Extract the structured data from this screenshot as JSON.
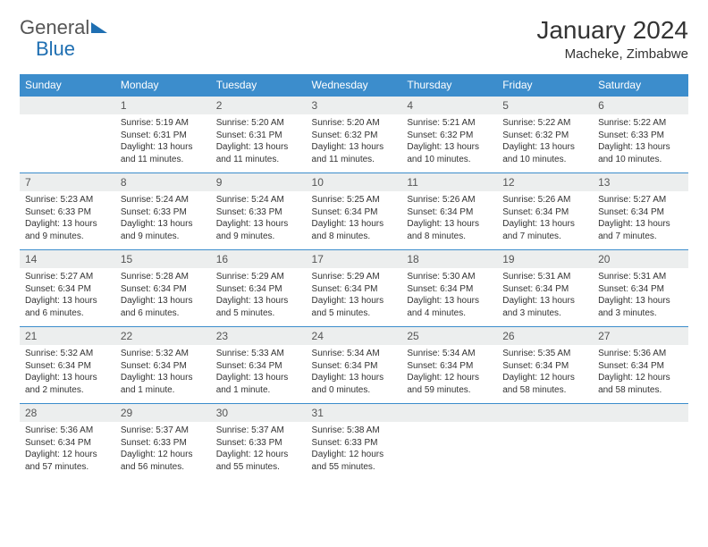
{
  "logo": {
    "part1": "General",
    "part2": "Blue"
  },
  "title": {
    "month": "January 2024",
    "location": "Macheke, Zimbabwe"
  },
  "colors": {
    "header_bg": "#3c8dcc",
    "header_text": "#ffffff",
    "daynum_bg": "#eceeee",
    "border": "#3c8dcc",
    "logo_accent": "#1f6fb2",
    "body_text": "#333333"
  },
  "weekdays": [
    "Sunday",
    "Monday",
    "Tuesday",
    "Wednesday",
    "Thursday",
    "Friday",
    "Saturday"
  ],
  "weeks": [
    [
      {
        "n": "",
        "sr": "",
        "ss": "",
        "dl": ""
      },
      {
        "n": "1",
        "sr": "Sunrise: 5:19 AM",
        "ss": "Sunset: 6:31 PM",
        "dl": "Daylight: 13 hours and 11 minutes."
      },
      {
        "n": "2",
        "sr": "Sunrise: 5:20 AM",
        "ss": "Sunset: 6:31 PM",
        "dl": "Daylight: 13 hours and 11 minutes."
      },
      {
        "n": "3",
        "sr": "Sunrise: 5:20 AM",
        "ss": "Sunset: 6:32 PM",
        "dl": "Daylight: 13 hours and 11 minutes."
      },
      {
        "n": "4",
        "sr": "Sunrise: 5:21 AM",
        "ss": "Sunset: 6:32 PM",
        "dl": "Daylight: 13 hours and 10 minutes."
      },
      {
        "n": "5",
        "sr": "Sunrise: 5:22 AM",
        "ss": "Sunset: 6:32 PM",
        "dl": "Daylight: 13 hours and 10 minutes."
      },
      {
        "n": "6",
        "sr": "Sunrise: 5:22 AM",
        "ss": "Sunset: 6:33 PM",
        "dl": "Daylight: 13 hours and 10 minutes."
      }
    ],
    [
      {
        "n": "7",
        "sr": "Sunrise: 5:23 AM",
        "ss": "Sunset: 6:33 PM",
        "dl": "Daylight: 13 hours and 9 minutes."
      },
      {
        "n": "8",
        "sr": "Sunrise: 5:24 AM",
        "ss": "Sunset: 6:33 PM",
        "dl": "Daylight: 13 hours and 9 minutes."
      },
      {
        "n": "9",
        "sr": "Sunrise: 5:24 AM",
        "ss": "Sunset: 6:33 PM",
        "dl": "Daylight: 13 hours and 9 minutes."
      },
      {
        "n": "10",
        "sr": "Sunrise: 5:25 AM",
        "ss": "Sunset: 6:34 PM",
        "dl": "Daylight: 13 hours and 8 minutes."
      },
      {
        "n": "11",
        "sr": "Sunrise: 5:26 AM",
        "ss": "Sunset: 6:34 PM",
        "dl": "Daylight: 13 hours and 8 minutes."
      },
      {
        "n": "12",
        "sr": "Sunrise: 5:26 AM",
        "ss": "Sunset: 6:34 PM",
        "dl": "Daylight: 13 hours and 7 minutes."
      },
      {
        "n": "13",
        "sr": "Sunrise: 5:27 AM",
        "ss": "Sunset: 6:34 PM",
        "dl": "Daylight: 13 hours and 7 minutes."
      }
    ],
    [
      {
        "n": "14",
        "sr": "Sunrise: 5:27 AM",
        "ss": "Sunset: 6:34 PM",
        "dl": "Daylight: 13 hours and 6 minutes."
      },
      {
        "n": "15",
        "sr": "Sunrise: 5:28 AM",
        "ss": "Sunset: 6:34 PM",
        "dl": "Daylight: 13 hours and 6 minutes."
      },
      {
        "n": "16",
        "sr": "Sunrise: 5:29 AM",
        "ss": "Sunset: 6:34 PM",
        "dl": "Daylight: 13 hours and 5 minutes."
      },
      {
        "n": "17",
        "sr": "Sunrise: 5:29 AM",
        "ss": "Sunset: 6:34 PM",
        "dl": "Daylight: 13 hours and 5 minutes."
      },
      {
        "n": "18",
        "sr": "Sunrise: 5:30 AM",
        "ss": "Sunset: 6:34 PM",
        "dl": "Daylight: 13 hours and 4 minutes."
      },
      {
        "n": "19",
        "sr": "Sunrise: 5:31 AM",
        "ss": "Sunset: 6:34 PM",
        "dl": "Daylight: 13 hours and 3 minutes."
      },
      {
        "n": "20",
        "sr": "Sunrise: 5:31 AM",
        "ss": "Sunset: 6:34 PM",
        "dl": "Daylight: 13 hours and 3 minutes."
      }
    ],
    [
      {
        "n": "21",
        "sr": "Sunrise: 5:32 AM",
        "ss": "Sunset: 6:34 PM",
        "dl": "Daylight: 13 hours and 2 minutes."
      },
      {
        "n": "22",
        "sr": "Sunrise: 5:32 AM",
        "ss": "Sunset: 6:34 PM",
        "dl": "Daylight: 13 hours and 1 minute."
      },
      {
        "n": "23",
        "sr": "Sunrise: 5:33 AM",
        "ss": "Sunset: 6:34 PM",
        "dl": "Daylight: 13 hours and 1 minute."
      },
      {
        "n": "24",
        "sr": "Sunrise: 5:34 AM",
        "ss": "Sunset: 6:34 PM",
        "dl": "Daylight: 13 hours and 0 minutes."
      },
      {
        "n": "25",
        "sr": "Sunrise: 5:34 AM",
        "ss": "Sunset: 6:34 PM",
        "dl": "Daylight: 12 hours and 59 minutes."
      },
      {
        "n": "26",
        "sr": "Sunrise: 5:35 AM",
        "ss": "Sunset: 6:34 PM",
        "dl": "Daylight: 12 hours and 58 minutes."
      },
      {
        "n": "27",
        "sr": "Sunrise: 5:36 AM",
        "ss": "Sunset: 6:34 PM",
        "dl": "Daylight: 12 hours and 58 minutes."
      }
    ],
    [
      {
        "n": "28",
        "sr": "Sunrise: 5:36 AM",
        "ss": "Sunset: 6:34 PM",
        "dl": "Daylight: 12 hours and 57 minutes."
      },
      {
        "n": "29",
        "sr": "Sunrise: 5:37 AM",
        "ss": "Sunset: 6:33 PM",
        "dl": "Daylight: 12 hours and 56 minutes."
      },
      {
        "n": "30",
        "sr": "Sunrise: 5:37 AM",
        "ss": "Sunset: 6:33 PM",
        "dl": "Daylight: 12 hours and 55 minutes."
      },
      {
        "n": "31",
        "sr": "Sunrise: 5:38 AM",
        "ss": "Sunset: 6:33 PM",
        "dl": "Daylight: 12 hours and 55 minutes."
      },
      {
        "n": "",
        "sr": "",
        "ss": "",
        "dl": ""
      },
      {
        "n": "",
        "sr": "",
        "ss": "",
        "dl": ""
      },
      {
        "n": "",
        "sr": "",
        "ss": "",
        "dl": ""
      }
    ]
  ]
}
